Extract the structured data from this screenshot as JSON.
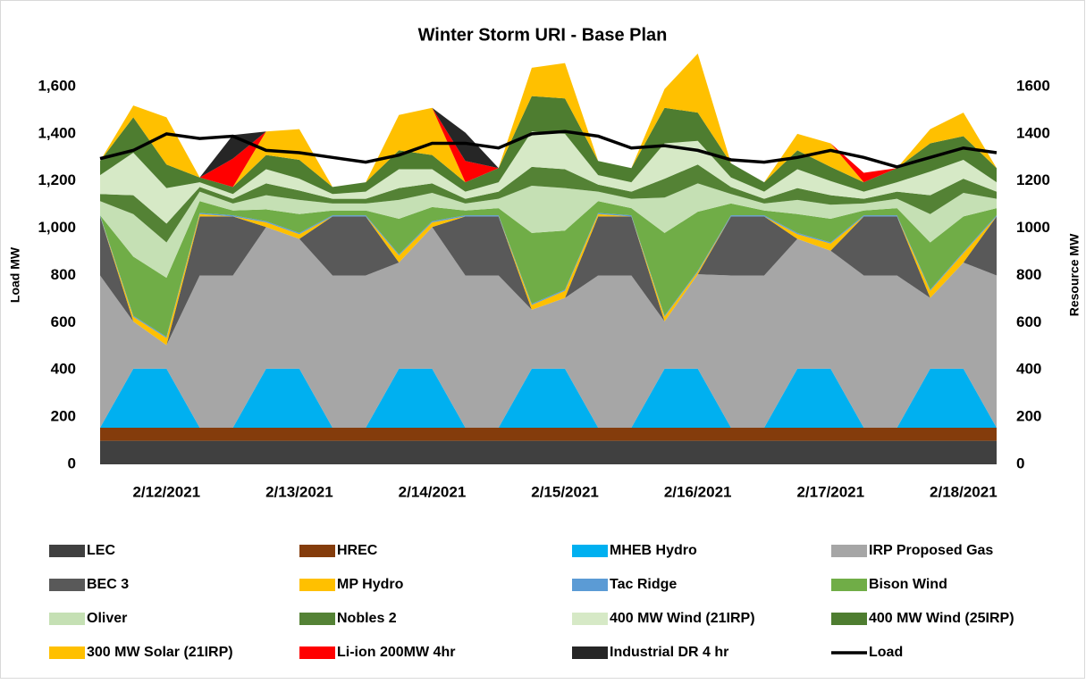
{
  "chart_data": {
    "type": "stacked_area",
    "title": "Winter Storm URI - Base Plan",
    "ylabel": "Load MW",
    "y2label": "Resource MW",
    "categories": [
      null,
      null,
      "2/12/2021",
      null,
      null,
      null,
      "2/13/2021",
      null,
      null,
      null,
      "2/14/2021",
      null,
      null,
      null,
      "2/15/2021",
      null,
      null,
      null,
      "2/16/2021",
      null,
      null,
      null,
      "2/17/2021",
      null,
      null,
      null,
      "2/18/2021",
      null
    ],
    "ylim": [
      0,
      1600
    ],
    "yticks": [
      0,
      {
        "value": 200,
        "label": "200"
      },
      400,
      600,
      800,
      {
        "value": 1000,
        "label": "1,000"
      },
      {
        "value": 1200,
        "label": "1,200"
      },
      {
        "value": 1400,
        "label": "1,400"
      },
      {
        "value": 1600,
        "label": "1,600"
      }
    ],
    "y2lim": [
      0,
      1600
    ],
    "y2ticks": [
      0,
      200,
      400,
      600,
      800,
      1000,
      1200,
      1400,
      1600
    ],
    "series": [
      {
        "name": "LEC",
        "color": "#404040",
        "axis": "y2",
        "values": [
          100,
          100,
          100,
          100,
          100,
          100,
          100,
          100,
          100,
          100,
          100,
          100,
          100,
          100,
          100,
          100,
          100,
          100,
          100,
          100,
          100,
          100,
          100,
          100,
          100,
          100,
          100,
          100
        ]
      },
      {
        "name": "HREC",
        "color": "#843c0c",
        "axis": "y2",
        "values": [
          55,
          55,
          55,
          55,
          55,
          55,
          55,
          55,
          55,
          55,
          55,
          55,
          55,
          55,
          55,
          55,
          55,
          55,
          55,
          55,
          55,
          55,
          55,
          55,
          55,
          55,
          55,
          55
        ]
      },
      {
        "name": "MHEB Hydro",
        "color": "#00b0f0",
        "axis": "y2",
        "values": [
          0,
          250,
          250,
          0,
          0,
          250,
          250,
          0,
          0,
          250,
          250,
          0,
          0,
          250,
          250,
          0,
          0,
          250,
          250,
          0,
          0,
          250,
          250,
          0,
          0,
          250,
          250,
          0
        ]
      },
      {
        "name": "IRP Proposed Gas",
        "color": "#a6a6a6",
        "axis": "y2",
        "values": [
          645,
          200,
          100,
          645,
          645,
          600,
          550,
          645,
          645,
          450,
          600,
          645,
          645,
          250,
          300,
          645,
          645,
          200,
          400,
          645,
          645,
          550,
          500,
          645,
          645,
          300,
          450,
          645
        ]
      },
      {
        "name": "BEC 3",
        "color": "#595959",
        "axis": "y2",
        "values": [
          250,
          0,
          0,
          250,
          250,
          0,
          0,
          250,
          250,
          0,
          0,
          250,
          250,
          0,
          0,
          250,
          250,
          0,
          0,
          250,
          250,
          0,
          0,
          250,
          250,
          0,
          0,
          250
        ]
      },
      {
        "name": "MP Hydro",
        "color": "#ffc000",
        "axis": "y2",
        "values": [
          0,
          20,
          30,
          10,
          0,
          20,
          20,
          0,
          0,
          30,
          20,
          0,
          0,
          20,
          30,
          10,
          0,
          20,
          10,
          0,
          0,
          20,
          30,
          0,
          0,
          30,
          40,
          0
        ]
      },
      {
        "name": "Tac Ridge",
        "color": "#5b9bd5",
        "axis": "y2",
        "values": [
          5,
          5,
          5,
          5,
          5,
          5,
          5,
          5,
          5,
          5,
          5,
          5,
          5,
          5,
          5,
          5,
          5,
          5,
          5,
          5,
          5,
          5,
          5,
          5,
          5,
          5,
          5,
          5
        ]
      },
      {
        "name": "Bison Wind",
        "color": "#70ad47",
        "axis": "y2",
        "values": [
          0,
          250,
          250,
          50,
          20,
          50,
          80,
          20,
          20,
          150,
          60,
          20,
          30,
          300,
          250,
          50,
          30,
          350,
          250,
          50,
          20,
          80,
          100,
          20,
          30,
          200,
          150,
          30
        ]
      },
      {
        "name": "Oliver",
        "color": "#c5e0b4",
        "axis": "y2",
        "values": [
          60,
          180,
          150,
          40,
          30,
          60,
          60,
          30,
          30,
          80,
          60,
          30,
          40,
          200,
          180,
          40,
          40,
          150,
          120,
          40,
          30,
          60,
          60,
          30,
          40,
          120,
          100,
          40
        ]
      },
      {
        "name": "Nobles 2",
        "color": "#548235",
        "axis": "y2",
        "values": [
          30,
          80,
          80,
          20,
          20,
          50,
          40,
          20,
          20,
          50,
          40,
          20,
          30,
          80,
          80,
          30,
          30,
          80,
          80,
          30,
          20,
          50,
          40,
          20,
          30,
          80,
          60,
          30
        ]
      },
      {
        "name": "400 MW Wind (21IRP)",
        "color": "#d6e9c6",
        "axis": "y2",
        "values": [
          80,
          180,
          150,
          20,
          20,
          60,
          50,
          20,
          30,
          80,
          60,
          30,
          40,
          150,
          150,
          40,
          40,
          150,
          100,
          40,
          30,
          80,
          60,
          30,
          40,
          100,
          80,
          40
        ]
      },
      {
        "name": "400 MW Wind (25IRP)",
        "color": "#4e7d30",
        "axis": "y2",
        "values": [
          60,
          150,
          100,
          20,
          30,
          60,
          80,
          30,
          40,
          80,
          60,
          40,
          60,
          150,
          150,
          60,
          60,
          150,
          120,
          60,
          40,
          80,
          60,
          40,
          60,
          120,
          100,
          60
        ]
      },
      {
        "name": "300 MW Solar (21IRP)",
        "color": "#ffc000",
        "axis": "y2",
        "values": [
          0,
          50,
          200,
          0,
          0,
          100,
          130,
          0,
          0,
          150,
          200,
          0,
          0,
          120,
          150,
          0,
          0,
          80,
          250,
          0,
          0,
          70,
          100,
          0,
          0,
          60,
          100,
          0
        ]
      },
      {
        "name": "Li-ion 200MW 4hr",
        "color": "#ff0000",
        "axis": "y2",
        "values": [
          0,
          0,
          0,
          0,
          120,
          0,
          0,
          0,
          0,
          0,
          0,
          90,
          0,
          0,
          0,
          0,
          0,
          0,
          0,
          0,
          0,
          0,
          0,
          40,
          0,
          0,
          0,
          0
        ]
      },
      {
        "name": "Industrial DR 4 hr",
        "color": "#262626",
        "axis": "y2",
        "values": [
          0,
          0,
          0,
          0,
          100,
          0,
          0,
          0,
          0,
          0,
          0,
          120,
          0,
          0,
          0,
          0,
          0,
          0,
          0,
          0,
          0,
          0,
          0,
          0,
          0,
          0,
          0,
          0
        ]
      },
      {
        "name": "Load",
        "color": "#000000",
        "line": true,
        "values": [
          1295,
          1330,
          1400,
          1380,
          1390,
          1330,
          1320,
          1300,
          1280,
          1310,
          1360,
          1360,
          1340,
          1400,
          1410,
          1390,
          1340,
          1350,
          1330,
          1290,
          1280,
          1300,
          1330,
          1300,
          1260,
          1300,
          1340,
          1320
        ]
      }
    ]
  }
}
